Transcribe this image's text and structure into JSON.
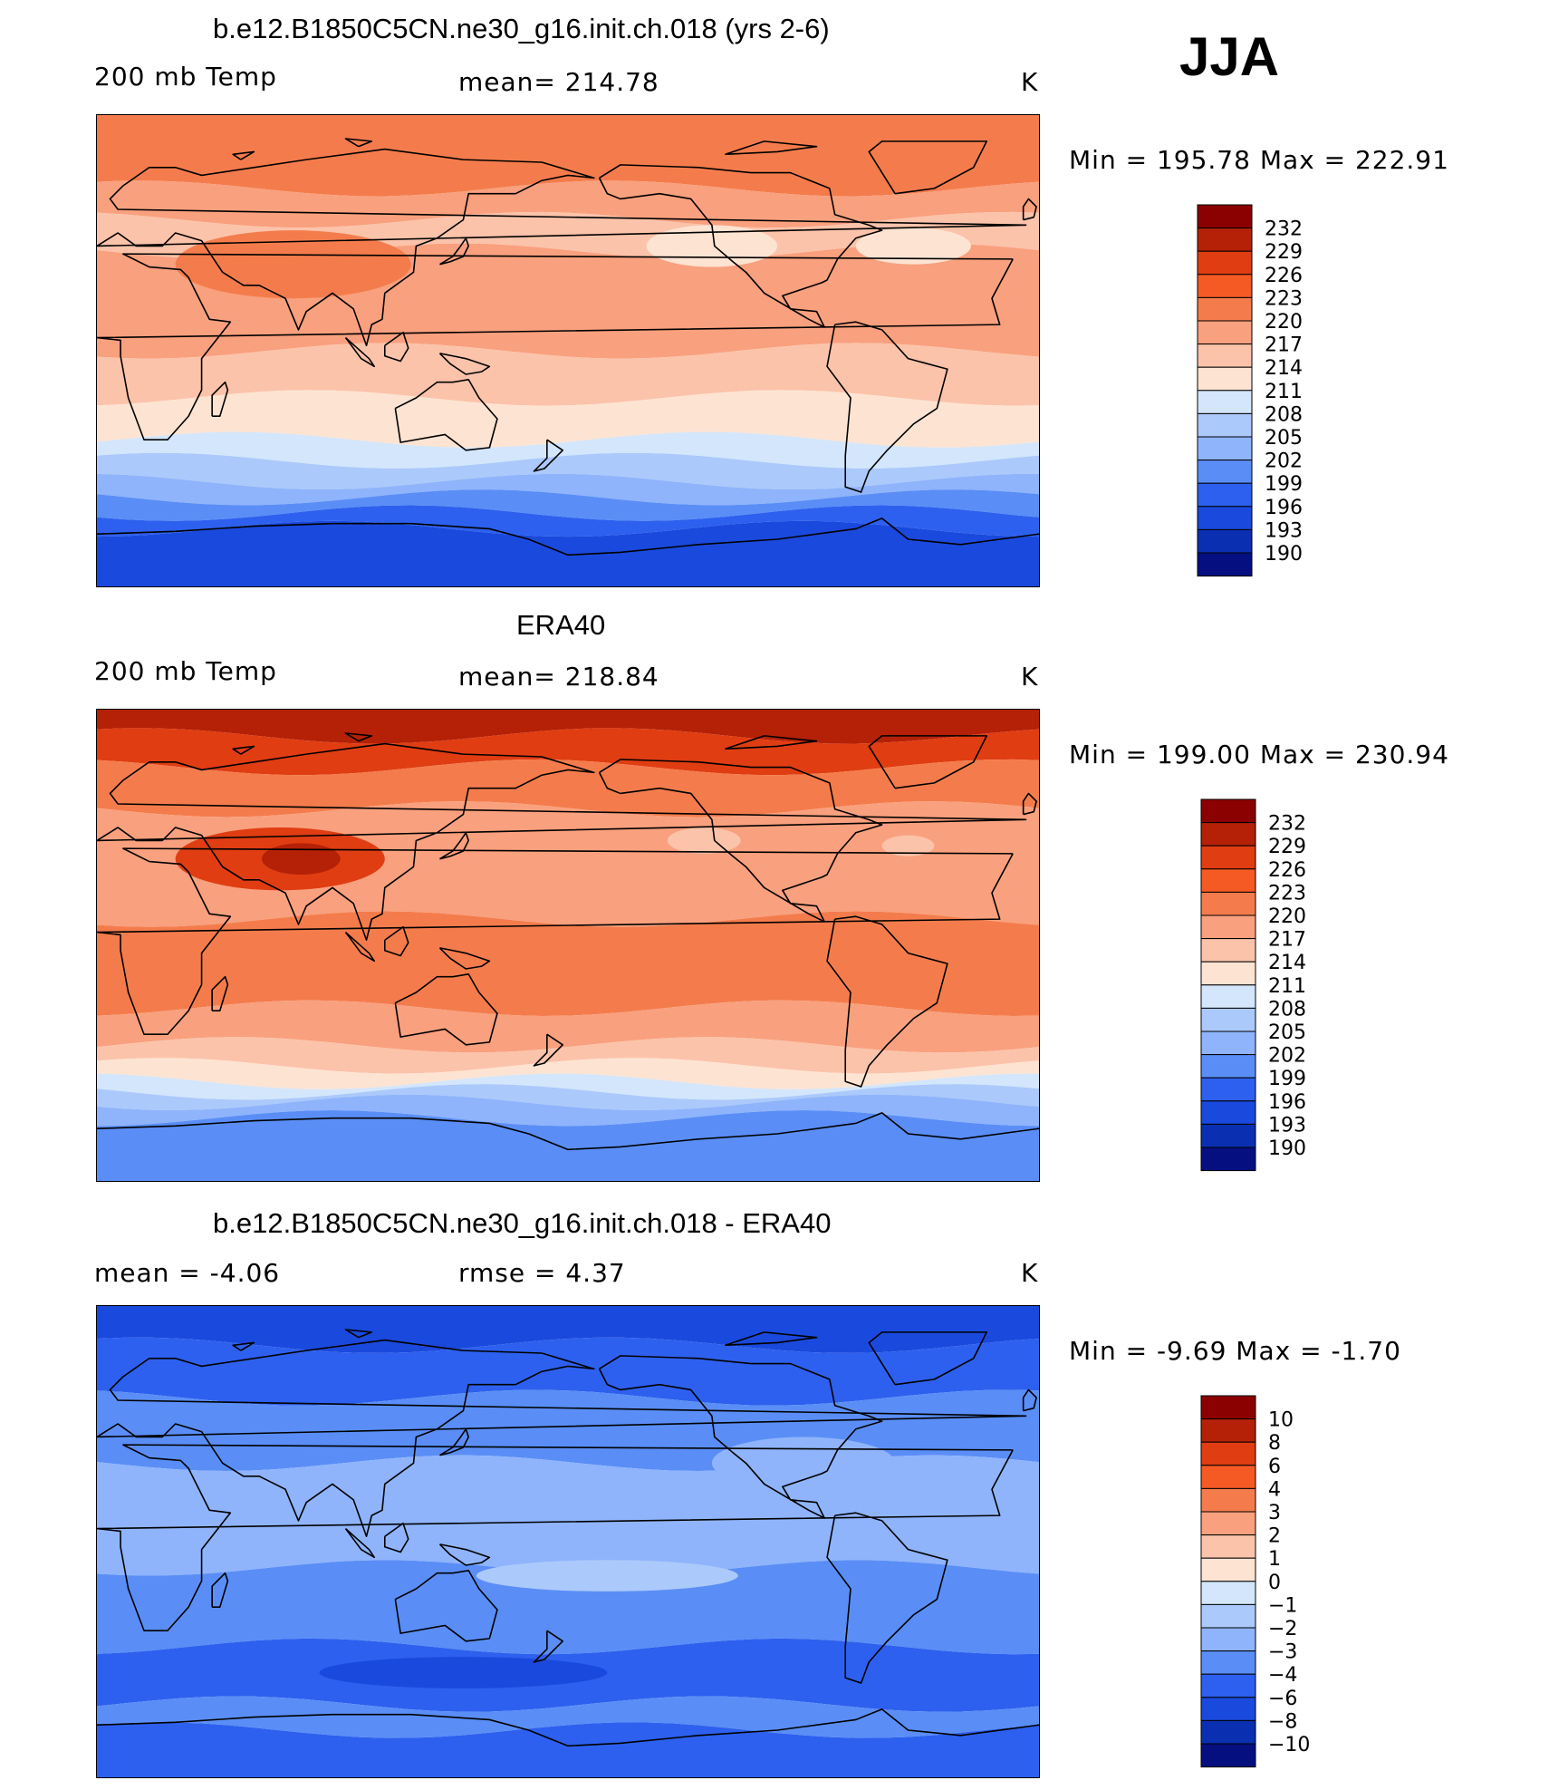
{
  "season": "JJA",
  "panels": [
    {
      "title": "b.e12.B1850C5CN.ne30_g16.init.ch.018 (yrs 2-6)",
      "left_label": "200 mb Temp",
      "center_label": "mean=  214.78",
      "units": "K",
      "stats": "Min  =  195.78  Max  =  222.91",
      "colorbar": {
        "labels": [
          "232",
          "229",
          "226",
          "223",
          "220",
          "217",
          "214",
          "211",
          "208",
          "205",
          "202",
          "199",
          "196",
          "193",
          "190"
        ]
      },
      "field": {
        "band_colors": [
          "#f47c4c",
          "#f9a07e",
          "#fbc3aa",
          "#f9a07e",
          "#fbc3aa",
          "#fde3d2",
          "#d3e6fb",
          "#abc9fa",
          "#8fb4fb",
          "#5a8ef6",
          "#2d60ee",
          "#1a49dd"
        ],
        "band_lats": [
          62,
          50,
          38,
          0,
          -18,
          -34,
          -42,
          -50,
          -56,
          -62,
          -68
        ],
        "blobs": [
          {
            "lon": 75,
            "lat": 33,
            "rx": 45,
            "ry": 13,
            "color": "#f47c4c"
          },
          {
            "lon": 235,
            "lat": 40,
            "rx": 25,
            "ry": 8,
            "color": "#fde3d2"
          },
          {
            "lon": 312,
            "lat": 40,
            "rx": 22,
            "ry": 7,
            "color": "#fde3d2"
          }
        ]
      }
    },
    {
      "title": "ERA40",
      "left_label": "200 mb Temp",
      "center_label": "mean=  218.84",
      "units": "K",
      "stats": "Min  =  199.00  Max  =  230.94",
      "colorbar": {
        "labels": [
          "232",
          "229",
          "226",
          "223",
          "220",
          "217",
          "214",
          "211",
          "208",
          "205",
          "202",
          "199",
          "196",
          "193",
          "190"
        ]
      },
      "field": {
        "band_colors": [
          "#b42107",
          "#e03d12",
          "#f47c4c",
          "#f9a07e",
          "#f47c4c",
          "#f9a07e",
          "#fbc3aa",
          "#fde3d2",
          "#d3e6fb",
          "#abc9fa",
          "#8fb4fb",
          "#5a8ef6"
        ],
        "band_lats": [
          80,
          68,
          52,
          10,
          -24,
          -38,
          -46,
          -52,
          -56,
          -60,
          -66
        ],
        "blobs": [
          {
            "lon": 70,
            "lat": 33,
            "rx": 40,
            "ry": 12,
            "color": "#e03d12"
          },
          {
            "lon": 78,
            "lat": 33,
            "rx": 15,
            "ry": 6,
            "color": "#b42107"
          },
          {
            "lon": 232,
            "lat": 40,
            "rx": 14,
            "ry": 5,
            "color": "#fbc3aa"
          },
          {
            "lon": 310,
            "lat": 38,
            "rx": 10,
            "ry": 4,
            "color": "#fbc3aa"
          }
        ]
      }
    },
    {
      "title": "b.e12.B1850C5CN.ne30_g16.init.ch.018 - ERA40",
      "left_label": "mean  =    -4.06",
      "center_label": "rmse  =     4.37",
      "units": "K",
      "stats": "Min  =    -9.69  Max  =    -1.70",
      "colorbar": {
        "labels": [
          "10",
          "8",
          "6",
          "4",
          "3",
          "2",
          "1",
          "0",
          "−1",
          "−2",
          "−3",
          "−4",
          "−6",
          "−8",
          "−10"
        ]
      },
      "field": {
        "band_colors": [
          "#1a49dd",
          "#2d60ee",
          "#5a8ef6",
          "#8fb4fb",
          "#5a8ef6",
          "#2d60ee",
          "#5a8ef6",
          "#2d60ee"
        ],
        "band_lats": [
          75,
          55,
          30,
          -10,
          -40,
          -62,
          -72
        ],
        "blobs": [
          {
            "lon": 195,
            "lat": -13,
            "rx": 50,
            "ry": 6,
            "color": "#abc9fa"
          },
          {
            "lon": 270,
            "lat": 30,
            "rx": 35,
            "ry": 10,
            "color": "#8fb4fb"
          },
          {
            "lon": 140,
            "lat": -50,
            "rx": 55,
            "ry": 6,
            "color": "#1a49dd"
          }
        ]
      }
    }
  ]
}
